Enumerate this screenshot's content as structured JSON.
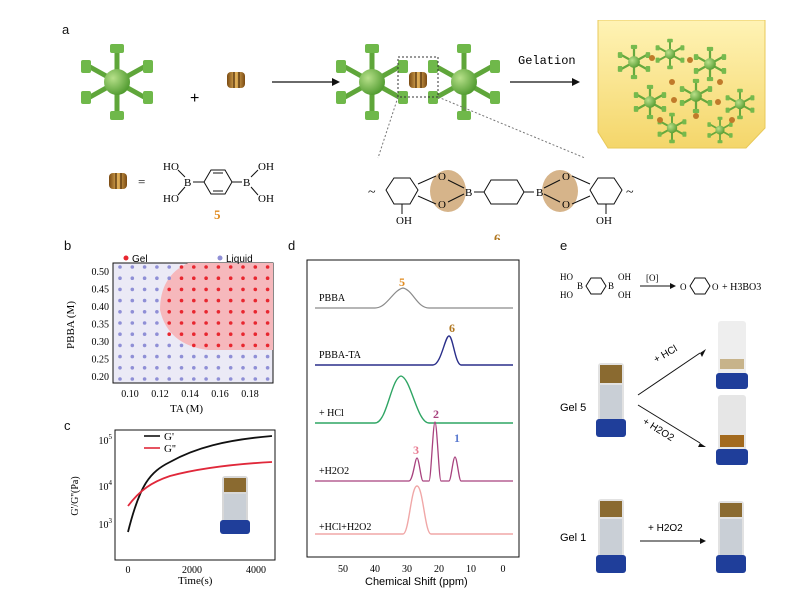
{
  "panels": {
    "a": "a",
    "b": "b",
    "c": "c",
    "d": "d",
    "e": "e"
  },
  "panel_a": {
    "plus": "+",
    "gelation": "Gelation",
    "compound5_label": "5",
    "compound6_label": "6",
    "equals": "=",
    "boronic_oh": "OH",
    "boronic_ho": "HO",
    "boron": "B",
    "oxygen": "O",
    "hydroxyl": "OH"
  },
  "panel_b": {
    "legend_gel": "Gel",
    "legend_liquid": "Liquid",
    "xlabel": "TA (M)",
    "ylabel": "PBBA (M)",
    "xticks": [
      "0.10",
      "0.12",
      "0.14",
      "0.16",
      "0.18"
    ],
    "yticks": [
      "0.50",
      "0.45",
      "0.40",
      "0.35",
      "0.30",
      "0.25",
      "0.20"
    ],
    "colors": {
      "gel": "#e8262f",
      "liquid": "#8f8fd6",
      "gel_region": "#f6b8bc",
      "bg": "#ebeaf6"
    }
  },
  "panel_c": {
    "legend_g1": "G'",
    "legend_g2": "G''",
    "xlabel": "Time(s)",
    "ylabel": "G'/G''(Pa)",
    "xticks": [
      "0",
      "2000",
      "4000"
    ],
    "yticks": [
      "10^5",
      "10^4",
      "10^3"
    ],
    "colors": {
      "g1": "#111111",
      "g2": "#e0283a"
    }
  },
  "panel_d": {
    "traces": [
      "PBBA",
      "PBBA-TA",
      "+ HCl",
      "+H2O2",
      "+HCl+H2O2"
    ],
    "peak_labels": {
      "p5": "5",
      "p6": "6",
      "p3": "3",
      "p2": "2",
      "p1": "1"
    },
    "xlabel": "Chemical Shift (ppm)",
    "xticks": [
      "50",
      "40",
      "30",
      "20",
      "10",
      "0"
    ],
    "colors": {
      "pbba": "#8a8a8a",
      "pbbata": "#2a2f8a",
      "hcl": "#2fa564",
      "h2o2": "#a8427e",
      "hclh2o2": "#f0a7a7",
      "p5": "#e08a1e",
      "p6": "#b0761e",
      "p3": "#e87a90",
      "p2": "#a8427e",
      "p1": "#5b7bd0"
    }
  },
  "panel_e": {
    "oxidant": "[O]",
    "product_suffix": "+ H3BO3",
    "gel5": "Gel 5",
    "gel1": "Gel 1",
    "hcl": "+ HCl",
    "h2o2": "+ H2O2",
    "h2o2b": "+ H2O2"
  }
}
